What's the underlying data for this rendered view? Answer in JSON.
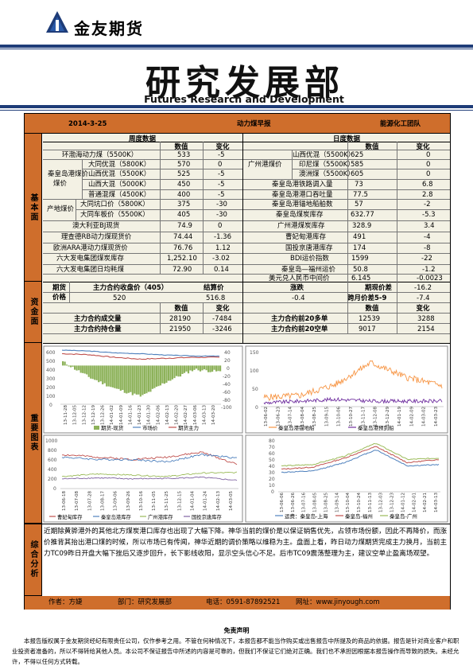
{
  "header": {
    "company_name": "金友期货",
    "title": "研究发展部",
    "subtitle_en": "Futures Research and Development"
  },
  "info_bar": {
    "date": "2014-3-25",
    "report_name": "动力煤早报",
    "team": "能源化工团队"
  },
  "sections": {
    "fundamentals": "基本面",
    "funds": "资金面",
    "charts": "重要图表",
    "analysis": "综合分析"
  },
  "weekly": {
    "header": "周度数据",
    "col_value": "数值",
    "col_change": "变化",
    "rows": [
      {
        "group": "",
        "name": "环渤海动力煤（5500K）",
        "value": "533",
        "change": "-5"
      },
      {
        "group": "秦皇岛港煤价",
        "name": "大同优混（5800K）",
        "value": "570",
        "change": "0"
      },
      {
        "group": "",
        "name": "山西优混（5500K）",
        "value": "525",
        "change": "-5"
      },
      {
        "group": "",
        "name": "山西大混（5000K）",
        "value": "450",
        "change": "-5"
      },
      {
        "group": "",
        "name": "普通混煤（4500K）",
        "value": "400",
        "change": "-5"
      },
      {
        "group": "产地煤价",
        "name": "大同坑口价（5800K）",
        "value": "375",
        "change": "-30"
      },
      {
        "group": "",
        "name": "大同车板价（5500K）",
        "value": "405",
        "change": "-30"
      },
      {
        "group": "",
        "name": "澳大利亚BJ现货",
        "value": "74.9",
        "change": "0"
      },
      {
        "group": "",
        "name": "理查德RB动力煤现货价",
        "value": "74.44",
        "change": "-1.36"
      },
      {
        "group": "",
        "name": "欧洲ARA港动力煤现货价",
        "value": "76.76",
        "change": "1.12"
      },
      {
        "group": "",
        "name": "六大发电集团煤炭库存",
        "value": "1,252.10",
        "change": "-3.02"
      },
      {
        "group": "",
        "name": "六大发电集团日均耗煤",
        "value": "72.90",
        "change": "0.14"
      }
    ]
  },
  "daily": {
    "header": "日度数据",
    "col_value": "数值",
    "col_change": "变化",
    "rows": [
      {
        "group": "广州港煤价",
        "name": "山西优混（5500K）",
        "value": "625",
        "change": "0"
      },
      {
        "group": "",
        "name": "印尼煤（5500K）",
        "value": "585",
        "change": "0"
      },
      {
        "group": "",
        "name": "澳洲煤（5500K）",
        "value": "605",
        "change": "0"
      },
      {
        "group": "",
        "name": "秦皇岛港铁路调入量",
        "value": "73",
        "change": "6.8"
      },
      {
        "group": "",
        "name": "秦皇岛港港口吞吐量",
        "value": "77.5",
        "change": "2.8"
      },
      {
        "group": "",
        "name": "秦皇岛港锚地船舶数",
        "value": "57",
        "change": "-2"
      },
      {
        "group": "",
        "name": "秦皇岛煤炭库存",
        "value": "632.77",
        "change": "-5.3"
      },
      {
        "group": "",
        "name": "广州港煤炭库存",
        "value": "328.9",
        "change": "3.4"
      },
      {
        "group": "",
        "name": "曹妃甸港库存",
        "value": "491",
        "change": "-4"
      },
      {
        "group": "",
        "name": "国投京唐港库存",
        "value": "174",
        "change": "-8"
      },
      {
        "group": "",
        "name": "BDI运价指数",
        "value": "1599",
        "change": "-22"
      },
      {
        "group": "",
        "name": "秦皇岛—福州运价",
        "value": "50.8",
        "change": "-1.2"
      },
      {
        "group": "",
        "name": "美元兑人民币中间价",
        "value": "6.145",
        "change": "-0.0023"
      }
    ]
  },
  "futures": {
    "label_price": "期货价格",
    "h_close": "主力合约收盘价（405）",
    "h_settle": "结算价",
    "h_change": "涨跌",
    "h_basis": "期现价差",
    "close": "520",
    "settle": "516.8",
    "change": "-0.4",
    "basis": "-16.2",
    "h_spread": "跨月价差5-9",
    "spread": "-7.4"
  },
  "positions": {
    "col_value": "数值",
    "col_change": "变化",
    "rows": [
      {
        "name": "主力合约成交量",
        "value": "28190",
        "change": "-7484",
        "name2": "主力合约前20多单",
        "value2": "12539",
        "change2": "3288"
      },
      {
        "name": "主力合约持仓量",
        "value": "21950",
        "change": "-3246",
        "name2": "主力合约前20空单",
        "value2": "9017",
        "change2": "2154"
      }
    ]
  },
  "charts": [
    {
      "type": "line",
      "ylim": [
        0,
        600
      ],
      "y2lim": [
        -100,
        40
      ],
      "yticks": [
        "600",
        "500",
        "400",
        "300",
        "200",
        "100",
        "0"
      ],
      "y2ticks": [
        "40",
        "20",
        "0",
        "-20",
        "-40",
        "-60",
        "-80",
        "-100"
      ],
      "x": [
        "13-11-28",
        "13-12-05",
        "13-12-12",
        "13-12-19",
        "13-12-26",
        "14-01-02",
        "14-01-09",
        "14-01-16",
        "14-01-23",
        "14-01-30",
        "14-02-06",
        "14-02-13",
        "14-02-20",
        "14-02-27",
        "14-03-06",
        "14-03-13",
        "14-03-20"
      ],
      "legend": [
        "期货-现货",
        "市场价",
        "期货主力"
      ],
      "colors": [
        "#8db25a",
        "#4f81bd",
        "#c0504d"
      ]
    },
    {
      "type": "line",
      "ylim": [
        0,
        150
      ],
      "yticks": [
        "150",
        "100",
        "50",
        "0"
      ],
      "x": [
        "13-06-02",
        "13-06-23",
        "13-07-14",
        "13-08-04",
        "13-08-25",
        "13-09-15",
        "13-10-06",
        "13-10-27",
        "13-11-17",
        "13-12-08",
        "13-12-29",
        "14-01-19",
        "14-02-09",
        "14-03-02",
        "14-03-23"
      ],
      "legend": [
        "秦皇岛港锚地船",
        "秦皇岛港预到船"
      ],
      "colors": [
        "#f79646",
        "#7030a0"
      ]
    },
    {
      "type": "line",
      "ylim": [
        0,
        1000
      ],
      "yticks": [
        "1000",
        "800",
        "600",
        "400",
        "200",
        "0"
      ],
      "x": [
        "13-06-18",
        "13-07-08",
        "13-07-28",
        "13-08-17",
        "13-09-06",
        "13-09-26",
        "13-10-16",
        "13-11-05",
        "13-11-25",
        "13-12-15",
        "14-01-04",
        "14-01-24",
        "14-02-13",
        "14-03-05"
      ],
      "legend": [
        "曹妃甸库存",
        "秦皇岛港库存",
        "广州港库存",
        "国投京唐库存"
      ],
      "colors": [
        "#c0504d",
        "#4f81bd",
        "#9bbb59",
        "#8064a2"
      ]
    },
    {
      "type": "line",
      "ylim": [
        0,
        80
      ],
      "yticks": [
        "80",
        "70",
        "60",
        "50",
        "40",
        "30",
        "20",
        "10",
        "0"
      ],
      "x": [
        "13-06-06",
        "13-06-26",
        "13-07-16",
        "13-08-05",
        "13-08-25",
        "13-09-14",
        "13-10-04",
        "13-10-24",
        "13-11-13",
        "13-12-03",
        "13-12-23",
        "14-01-12",
        "14-02-01",
        "14-02-21",
        "14-03-13"
      ],
      "legend": [
        "运费：秦皇岛-上海",
        "秦皇岛-福州",
        "秦皇岛-广州"
      ],
      "colors": [
        "#4f81bd",
        "#c0504d",
        "#9bbb59"
      ]
    }
  ],
  "analysis_text": "近期除黄骅港外的其他北方煤炭港口库存也出现了大幅下降。神华当前的煤价是以保证销售优先，占领市场份额，因此不再降价，而涨价推背其抬出港口煤的时候，所以市场已有传闻，神华近期的调价策略以维稳为主。盘面上看，昨日动力煤期货完成主力换月，当前主力TC09昨日开盘大幅下挫后又逐步回升，长下影线收阳，显示空头信心不足。后市TC09震荡整理为主，建议空单止盈离场观望。",
  "footer": {
    "author": "作者：方婕",
    "dept": "部门：研究发展部",
    "phone": "电话：0591-87892521",
    "site": "网址：www.jinyough.com"
  },
  "disclaimer": {
    "title": "免责声明",
    "text": "本报告版权属于金友期货经纪有限责任公司，仅作参考之用。不管在何种情况下，本报告都不能当作购买或出售报告中所提及的商品的依据。报告是针对商业客户和职业投资者准备的，所以不得转给其他人员。本公司不保证报告中所述的内容是可靠的，但我们不保证它们绝对正确。我们也不承担因根据本报告操作而导致的损失。未经允许，不得以任何方式转载。"
  },
  "chart_data": [
    {
      "type": "line",
      "x": [
        "13-11-28",
        "13-12-19",
        "14-01-09",
        "14-01-30",
        "14-02-20",
        "14-03-13",
        "14-03-20"
      ],
      "series": [
        {
          "name": "期货-现货",
          "values": [
            10,
            -30,
            -60,
            -80,
            -40,
            -10,
            -16
          ]
        },
        {
          "name": "市场价",
          "values": [
            600,
            590,
            570,
            560,
            545,
            535,
            533
          ]
        },
        {
          "name": "期货主力",
          "values": [
            560,
            550,
            520,
            500,
            510,
            520,
            520
          ]
        }
      ]
    },
    {
      "type": "line",
      "x": [
        "13-06-02",
        "13-08-04",
        "13-10-06",
        "13-12-08",
        "14-02-09",
        "14-03-23"
      ],
      "series": [
        {
          "name": "秦皇岛港锚地船",
          "values": [
            25,
            30,
            60,
            120,
            80,
            57
          ]
        },
        {
          "name": "秦皇岛港预到船",
          "values": [
            10,
            15,
            20,
            15,
            15,
            15
          ]
        }
      ]
    },
    {
      "type": "line",
      "x": [
        "13-06-18",
        "13-08-17",
        "13-10-16",
        "13-12-15",
        "14-02-13",
        "14-03-05"
      ],
      "series": [
        {
          "name": "曹妃甸库存",
          "values": [
            700,
            650,
            600,
            650,
            750,
            500
          ]
        },
        {
          "name": "秦皇岛港库存",
          "values": [
            650,
            600,
            600,
            550,
            700,
            630
          ]
        },
        {
          "name": "广州港库存",
          "values": [
            250,
            300,
            280,
            250,
            320,
            330
          ]
        },
        {
          "name": "国投京唐库存",
          "values": [
            200,
            220,
            200,
            210,
            230,
            170
          ]
        }
      ]
    },
    {
      "type": "line",
      "x": [
        "13-06-06",
        "13-08-05",
        "13-10-04",
        "13-12-03",
        "14-02-01",
        "14-03-13"
      ],
      "series": [
        {
          "name": "秦皇岛-上海",
          "values": [
            30,
            32,
            45,
            65,
            40,
            42
          ]
        },
        {
          "name": "秦皇岛-福州",
          "values": [
            35,
            38,
            52,
            70,
            45,
            50
          ]
        },
        {
          "name": "秦皇岛-广州",
          "values": [
            40,
            42,
            55,
            75,
            50,
            52
          ]
        }
      ]
    }
  ]
}
